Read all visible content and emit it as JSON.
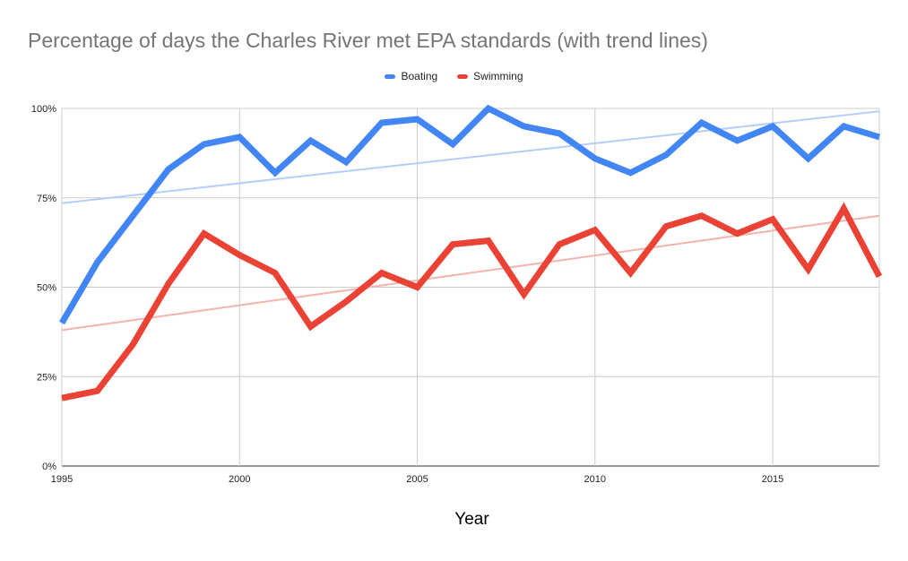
{
  "chart_data": {
    "type": "line",
    "title": "Percentage of days the Charles River met EPA standards (with trend lines)",
    "xlabel": "Year",
    "ylabel": "",
    "x": [
      1995,
      1996,
      1997,
      1998,
      1999,
      2000,
      2001,
      2002,
      2003,
      2004,
      2005,
      2006,
      2007,
      2008,
      2009,
      2010,
      2011,
      2012,
      2013,
      2014,
      2015,
      2016,
      2017,
      2018
    ],
    "xlim": [
      1995,
      2018
    ],
    "ylim": [
      0,
      100
    ],
    "x_ticks": [
      "1995",
      "2000",
      "2005",
      "2010",
      "2015"
    ],
    "x_tick_values": [
      1995,
      2000,
      2005,
      2010,
      2015
    ],
    "y_ticks": [
      "0%",
      "25%",
      "50%",
      "75%",
      "100%"
    ],
    "y_tick_values": [
      0,
      25,
      50,
      75,
      100
    ],
    "grid": true,
    "legend_position": "top",
    "series": [
      {
        "name": "Boating",
        "color": "#4285f4",
        "trend_color": "#b3cefb",
        "values": [
          40,
          57,
          70,
          83,
          90,
          92,
          82,
          91,
          85,
          96,
          97,
          90,
          100,
          95,
          93,
          86,
          82,
          87,
          96,
          91,
          95,
          86,
          95,
          92
        ],
        "trend": [
          73.5,
          99.2
        ]
      },
      {
        "name": "Swimming",
        "color": "#ea4335",
        "trend_color": "#f6b3ad",
        "values": [
          19,
          21,
          34,
          51,
          65,
          59,
          54,
          39,
          46,
          54,
          50,
          62,
          63,
          48,
          62,
          66,
          54,
          67,
          70,
          65,
          69,
          55,
          72,
          53
        ],
        "trend": [
          38,
          70
        ]
      }
    ]
  }
}
